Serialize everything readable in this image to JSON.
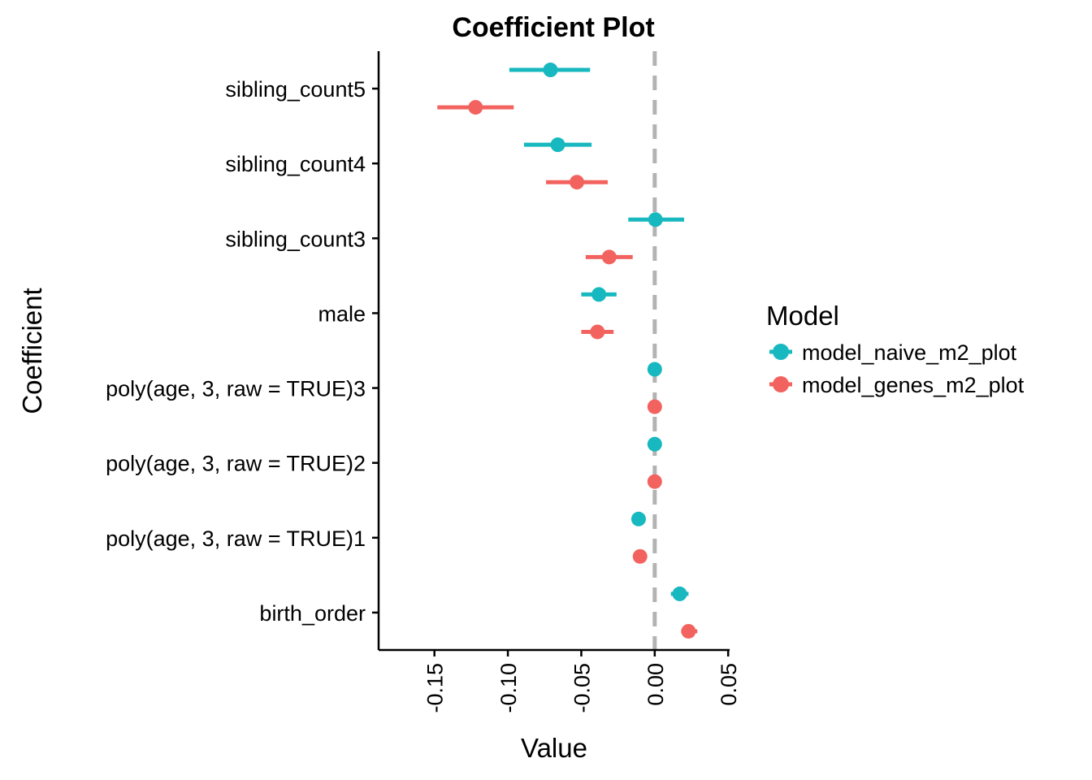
{
  "chart_data": {
    "type": "scatter",
    "subtype": "coefficient-plot",
    "title": "Coefficient Plot",
    "xlabel": "Value",
    "ylabel": "Coefficient",
    "xlim": [
      -0.188,
      0.051
    ],
    "x_ticks": [
      -0.15,
      -0.1,
      -0.05,
      0.0,
      0.05
    ],
    "x_tick_labels": [
      "-0.15",
      "-0.10",
      "-0.05",
      "0.00",
      "0.05"
    ],
    "reference_line": 0,
    "grid": false,
    "legend_position": "right",
    "legend_title": "Model",
    "categories": [
      "sibling_count5",
      "sibling_count4",
      "sibling_count3",
      "male",
      "poly(age, 3, raw = TRUE)3",
      "poly(age, 3, raw = TRUE)2",
      "poly(age, 3, raw = TRUE)1",
      "birth_order"
    ],
    "series": [
      {
        "name": "model_naive_m2_plot",
        "color": "#17b8bf",
        "estimate": [
          -0.071,
          -0.066,
          0.0005,
          -0.038,
          0.0,
          0.0,
          -0.011,
          0.017
        ],
        "lower": [
          -0.099,
          -0.089,
          -0.018,
          -0.05,
          -0.0005,
          -0.0005,
          -0.012,
          0.011
        ],
        "upper": [
          -0.044,
          -0.043,
          0.02,
          -0.026,
          0.0005,
          0.0005,
          -0.01,
          0.023
        ]
      },
      {
        "name": "model_genes_m2_plot",
        "color": "#f2635f",
        "estimate": [
          -0.122,
          -0.053,
          -0.031,
          -0.039,
          0.0,
          0.0,
          -0.01,
          0.023
        ],
        "lower": [
          -0.148,
          -0.074,
          -0.047,
          -0.05,
          -0.0005,
          -0.0005,
          -0.011,
          0.018
        ],
        "upper": [
          -0.096,
          -0.032,
          -0.015,
          -0.028,
          0.0005,
          0.0005,
          -0.009,
          0.029
        ]
      }
    ]
  }
}
